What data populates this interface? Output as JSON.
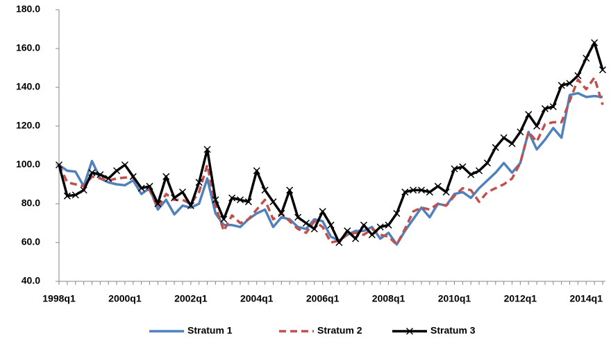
{
  "chart_data": {
    "type": "line",
    "categories": [
      "1998q1",
      null,
      null,
      null,
      null,
      null,
      null,
      null,
      "2000q1",
      null,
      null,
      null,
      null,
      null,
      null,
      null,
      "2002q1",
      null,
      null,
      null,
      null,
      null,
      null,
      null,
      "2004q1",
      null,
      null,
      null,
      null,
      null,
      null,
      null,
      "2006q1",
      null,
      null,
      null,
      null,
      null,
      null,
      null,
      "2008q1",
      null,
      null,
      null,
      null,
      null,
      null,
      null,
      "2010q1",
      null,
      null,
      null,
      null,
      null,
      null,
      null,
      "2012q1",
      null,
      null,
      null,
      null,
      null,
      null,
      null,
      "2014q1",
      null,
      null
    ],
    "ylim": [
      40,
      180
    ],
    "yticks": [
      {
        "value": 40,
        "label": "40.0"
      },
      {
        "value": 60,
        "label": "60.0"
      },
      {
        "value": 80,
        "label": "80.0"
      },
      {
        "value": 100,
        "label": "100.0"
      },
      {
        "value": 120,
        "label": "120.0"
      },
      {
        "value": 140,
        "label": "140.0"
      },
      {
        "value": 160,
        "label": "160.0"
      },
      {
        "value": 180,
        "label": "180.0"
      }
    ],
    "grid": false,
    "legend": "bottom",
    "series": [
      {
        "name": "Stratum 1",
        "color": "#4f81bd",
        "line_style": "solid",
        "values": [
          100,
          97,
          96.5,
          89,
          102,
          93,
          91,
          90,
          89.5,
          92,
          85,
          88,
          77,
          82,
          74.5,
          79,
          78,
          80,
          93,
          75,
          69,
          69,
          68,
          72,
          75,
          77,
          68,
          73,
          72,
          68,
          67,
          72,
          71,
          63,
          61,
          64,
          66,
          66,
          68,
          62,
          65,
          59,
          66,
          72,
          78,
          73,
          80,
          79,
          85,
          86,
          83,
          88,
          92,
          96,
          101,
          96,
          101,
          117,
          108,
          113,
          119,
          114,
          136,
          137,
          135,
          135.5,
          135
        ]
      },
      {
        "name": "Stratum 2",
        "color": "#c0504d",
        "line_style": "dashed",
        "values": [
          100,
          91,
          90,
          89,
          94,
          93,
          92,
          93,
          93.5,
          93.5,
          88,
          87,
          78,
          85,
          82,
          82,
          80,
          86,
          100,
          79,
          66,
          74,
          70,
          72,
          77,
          82,
          72,
          75,
          71,
          67,
          65,
          71,
          68,
          60,
          61,
          64,
          65,
          64,
          67,
          64,
          63,
          59,
          67,
          76,
          78,
          77,
          80,
          79,
          84,
          88,
          87,
          81,
          86,
          88,
          90,
          93,
          101,
          117,
          112,
          121,
          122,
          122,
          133,
          144,
          139,
          145,
          131
        ]
      },
      {
        "name": "Stratum 3",
        "color": "#000000",
        "line_style": "solid",
        "marker": "x",
        "values": [
          100,
          84,
          84.5,
          87,
          96,
          95,
          93,
          97,
          100,
          94,
          88,
          89,
          80,
          94,
          83,
          86,
          79,
          91,
          108,
          82,
          72,
          83,
          82,
          81,
          97,
          87,
          81,
          75,
          87,
          73,
          70,
          67,
          76,
          69,
          60,
          66,
          62,
          69,
          64,
          68,
          69,
          75,
          86,
          87,
          87,
          86,
          89,
          86,
          98,
          99,
          95,
          97,
          101,
          109,
          114,
          111,
          117,
          126,
          120,
          129,
          130,
          141,
          142,
          146,
          155,
          163,
          149
        ]
      }
    ]
  }
}
